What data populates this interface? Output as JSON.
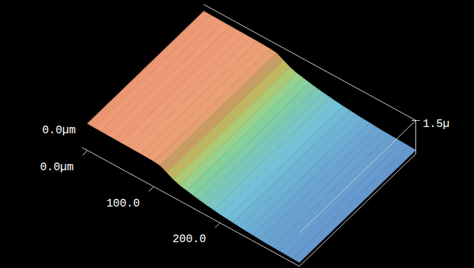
{
  "chart_data": {
    "type": "surface",
    "x": [
      0,
      10,
      20,
      30,
      40,
      50,
      60,
      70,
      80,
      90,
      100,
      110,
      120,
      130,
      140,
      150,
      160,
      170,
      180,
      190,
      200,
      210,
      220,
      230,
      240,
      250,
      260,
      270,
      280,
      290,
      300,
      310,
      320
    ],
    "values": [
      1.2,
      1.19,
      1.19,
      1.18,
      1.18,
      1.17,
      1.17,
      1.16,
      1.16,
      1.15,
      1.14,
      1.1,
      0.95,
      0.8,
      0.7,
      0.64,
      0.58,
      0.52,
      0.47,
      0.43,
      0.39,
      0.36,
      0.33,
      0.3,
      0.28,
      0.26,
      0.24,
      0.22,
      0.21,
      0.2,
      0.19,
      0.18,
      0.17
    ],
    "xlim": [
      0,
      320
    ],
    "xticks": [
      {
        "value": 0,
        "label": "0.0µm"
      },
      {
        "value": 100,
        "label": "100.0"
      },
      {
        "value": 200,
        "label": "200.0"
      }
    ],
    "ylim": [
      0,
      190
    ],
    "yticks": [
      {
        "value": 0,
        "label": "0.0µm"
      }
    ],
    "zlim": [
      0,
      1.5
    ],
    "zticks": [
      {
        "value": 1.5,
        "label": "1.5µ"
      }
    ]
  }
}
